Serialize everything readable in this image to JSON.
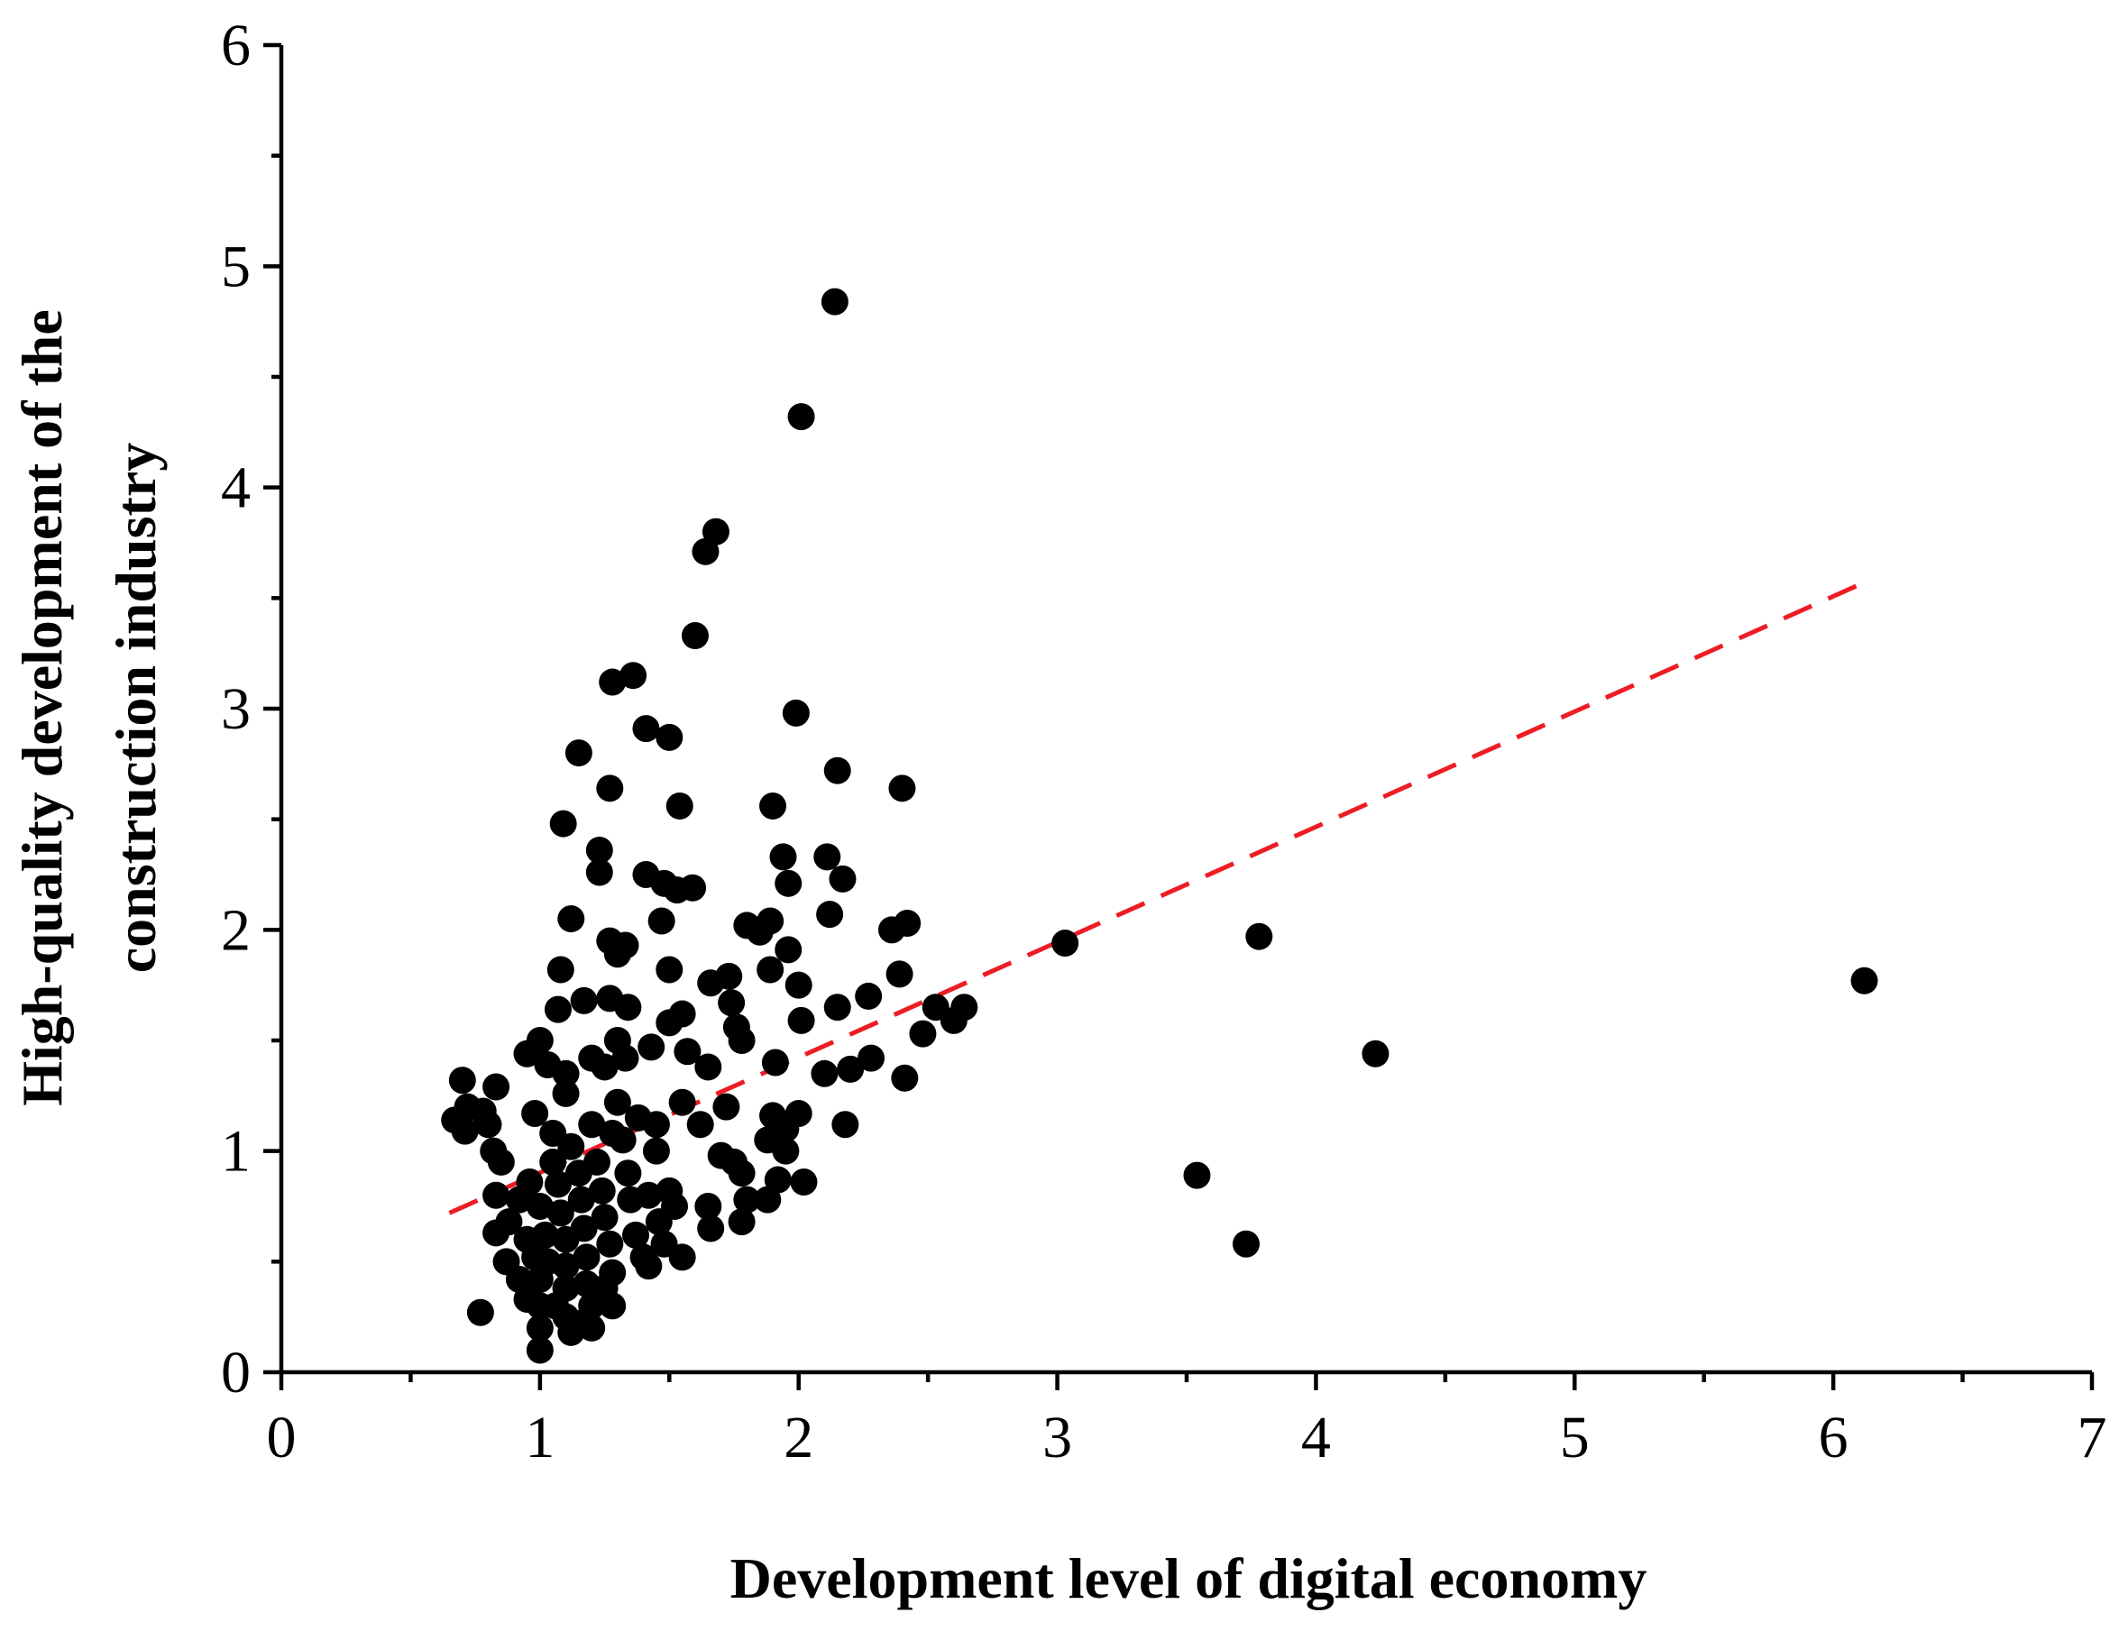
{
  "chart_data": {
    "type": "scatter",
    "xlabel": "Development level of digital economy",
    "ylabel_lines": [
      "High-quality development of the",
      "construction industry"
    ],
    "xlim": [
      0,
      7
    ],
    "ylim": [
      0,
      6
    ],
    "xticks": [
      "0",
      "1",
      "2",
      "3",
      "4",
      "5",
      "6",
      "7"
    ],
    "yticks": [
      "0",
      "1",
      "2",
      "3",
      "4",
      "5",
      "6"
    ],
    "grid": false,
    "legend": "none",
    "point_color": "#000000",
    "trendline": {
      "style": "dashed",
      "color": "#ee1c24",
      "x": [
        0.65,
        6.1
      ],
      "y": [
        0.72,
        3.56
      ]
    },
    "points": [
      [
        2.14,
        4.84
      ],
      [
        2.01,
        4.32
      ],
      [
        1.68,
        3.8
      ],
      [
        1.64,
        3.71
      ],
      [
        1.6,
        3.33
      ],
      [
        1.28,
        3.12
      ],
      [
        1.36,
        3.15
      ],
      [
        1.41,
        2.91
      ],
      [
        1.5,
        2.87
      ],
      [
        1.15,
        2.8
      ],
      [
        1.27,
        2.64
      ],
      [
        1.54,
        2.56
      ],
      [
        1.09,
        2.48
      ],
      [
        1.23,
        2.36
      ],
      [
        1.23,
        2.26
      ],
      [
        1.41,
        2.25
      ],
      [
        1.48,
        2.21
      ],
      [
        1.53,
        2.18
      ],
      [
        1.59,
        2.19
      ],
      [
        1.12,
        2.05
      ],
      [
        1.47,
        2.04
      ],
      [
        1.99,
        2.98
      ],
      [
        2.15,
        2.72
      ],
      [
        2.4,
        2.64
      ],
      [
        1.9,
        2.56
      ],
      [
        1.94,
        2.33
      ],
      [
        2.11,
        2.33
      ],
      [
        1.96,
        2.21
      ],
      [
        2.17,
        2.23
      ],
      [
        2.12,
        2.07
      ],
      [
        1.8,
        2.02
      ],
      [
        1.89,
        2.04
      ],
      [
        1.85,
        1.99
      ],
      [
        1.96,
        1.91
      ],
      [
        2.36,
        2.0
      ],
      [
        2.42,
        2.03
      ],
      [
        1.27,
        1.95
      ],
      [
        1.33,
        1.93
      ],
      [
        1.3,
        1.89
      ],
      [
        1.5,
        1.82
      ],
      [
        1.08,
        1.82
      ],
      [
        1.89,
        1.82
      ],
      [
        1.73,
        1.79
      ],
      [
        1.66,
        1.76
      ],
      [
        2.0,
        1.75
      ],
      [
        2.39,
        1.8
      ],
      [
        2.27,
        1.7
      ],
      [
        1.27,
        1.69
      ],
      [
        1.17,
        1.68
      ],
      [
        1.34,
        1.65
      ],
      [
        1.07,
        1.64
      ],
      [
        1.74,
        1.67
      ],
      [
        2.15,
        1.65
      ],
      [
        2.53,
        1.65
      ],
      [
        2.64,
        1.65
      ],
      [
        2.6,
        1.59
      ],
      [
        2.48,
        1.53
      ],
      [
        1.55,
        1.62
      ],
      [
        1.5,
        1.58
      ],
      [
        1.76,
        1.56
      ],
      [
        2.01,
        1.59
      ],
      [
        1.78,
        1.5
      ],
      [
        1.3,
        1.5
      ],
      [
        1.43,
        1.47
      ],
      [
        1.57,
        1.45
      ],
      [
        1.0,
        1.5
      ],
      [
        0.95,
        1.44
      ],
      [
        1.03,
        1.39
      ],
      [
        1.1,
        1.35
      ],
      [
        1.2,
        1.42
      ],
      [
        1.25,
        1.38
      ],
      [
        1.33,
        1.42
      ],
      [
        1.65,
        1.38
      ],
      [
        1.91,
        1.4
      ],
      [
        2.1,
        1.35
      ],
      [
        2.2,
        1.37
      ],
      [
        2.28,
        1.42
      ],
      [
        2.41,
        1.33
      ],
      [
        2.18,
        1.12
      ],
      [
        0.7,
        1.32
      ],
      [
        0.83,
        1.29
      ],
      [
        0.72,
        1.2
      ],
      [
        0.78,
        1.18
      ],
      [
        0.67,
        1.14
      ],
      [
        0.71,
        1.09
      ],
      [
        0.8,
        1.12
      ],
      [
        0.98,
        1.17
      ],
      [
        1.1,
        1.26
      ],
      [
        1.3,
        1.22
      ],
      [
        1.55,
        1.22
      ],
      [
        1.62,
        1.12
      ],
      [
        1.72,
        1.2
      ],
      [
        1.9,
        1.16
      ],
      [
        2.0,
        1.17
      ],
      [
        1.95,
        1.1
      ],
      [
        1.88,
        1.05
      ],
      [
        1.95,
        1.0
      ],
      [
        1.45,
        1.0
      ],
      [
        1.75,
        0.95
      ],
      [
        1.7,
        0.98
      ],
      [
        1.78,
        0.9
      ],
      [
        2.02,
        0.86
      ],
      [
        1.92,
        0.87
      ],
      [
        1.88,
        0.78
      ],
      [
        1.8,
        0.78
      ],
      [
        1.65,
        0.75
      ],
      [
        1.78,
        0.68
      ],
      [
        1.66,
        0.65
      ],
      [
        1.5,
        0.82
      ],
      [
        1.52,
        0.75
      ],
      [
        1.55,
        0.52
      ],
      [
        1.42,
        0.48
      ],
      [
        1.28,
        0.3
      ],
      [
        0.77,
        0.27
      ],
      [
        0.82,
        1.0
      ],
      [
        0.85,
        0.95
      ],
      [
        0.83,
        0.8
      ],
      [
        0.88,
        0.68
      ],
      [
        0.83,
        0.63
      ],
      [
        0.87,
        0.5
      ],
      [
        0.92,
        0.42
      ],
      [
        0.95,
        0.33
      ],
      [
        0.96,
        0.86
      ],
      [
        1.0,
        0.75
      ],
      [
        1.02,
        0.62
      ],
      [
        1.03,
        0.5
      ],
      [
        1.0,
        0.42
      ],
      [
        1.0,
        0.3
      ],
      [
        1.0,
        0.2
      ],
      [
        1.0,
        0.1
      ],
      [
        1.05,
        0.95
      ],
      [
        1.07,
        0.85
      ],
      [
        1.08,
        0.72
      ],
      [
        1.1,
        0.6
      ],
      [
        1.1,
        0.48
      ],
      [
        1.1,
        0.38
      ],
      [
        1.1,
        0.25
      ],
      [
        1.15,
        0.9
      ],
      [
        1.16,
        0.78
      ],
      [
        1.17,
        0.65
      ],
      [
        1.18,
        0.52
      ],
      [
        1.18,
        0.4
      ],
      [
        1.2,
        0.3
      ],
      [
        1.22,
        0.95
      ],
      [
        1.24,
        0.82
      ],
      [
        1.25,
        0.7
      ],
      [
        1.27,
        0.58
      ],
      [
        1.28,
        0.45
      ],
      [
        1.32,
        1.05
      ],
      [
        1.34,
        0.9
      ],
      [
        1.35,
        0.78
      ],
      [
        1.37,
        0.62
      ],
      [
        1.4,
        0.52
      ],
      [
        1.42,
        0.8
      ],
      [
        1.46,
        0.68
      ],
      [
        1.48,
        0.58
      ],
      [
        1.12,
        1.02
      ],
      [
        1.2,
        1.12
      ],
      [
        1.28,
        1.08
      ],
      [
        1.38,
        1.15
      ],
      [
        1.05,
        1.08
      ],
      [
        0.92,
        0.78
      ],
      [
        0.95,
        0.6
      ],
      [
        0.98,
        0.52
      ],
      [
        1.06,
        0.3
      ],
      [
        1.12,
        0.18
      ],
      [
        1.15,
        0.22
      ],
      [
        1.2,
        0.2
      ],
      [
        1.25,
        0.38
      ],
      [
        1.45,
        1.12
      ],
      [
        3.03,
        1.94
      ],
      [
        3.78,
        1.97
      ],
      [
        4.23,
        1.44
      ],
      [
        6.12,
        1.77
      ],
      [
        3.54,
        0.89
      ],
      [
        3.73,
        0.58
      ]
    ]
  }
}
